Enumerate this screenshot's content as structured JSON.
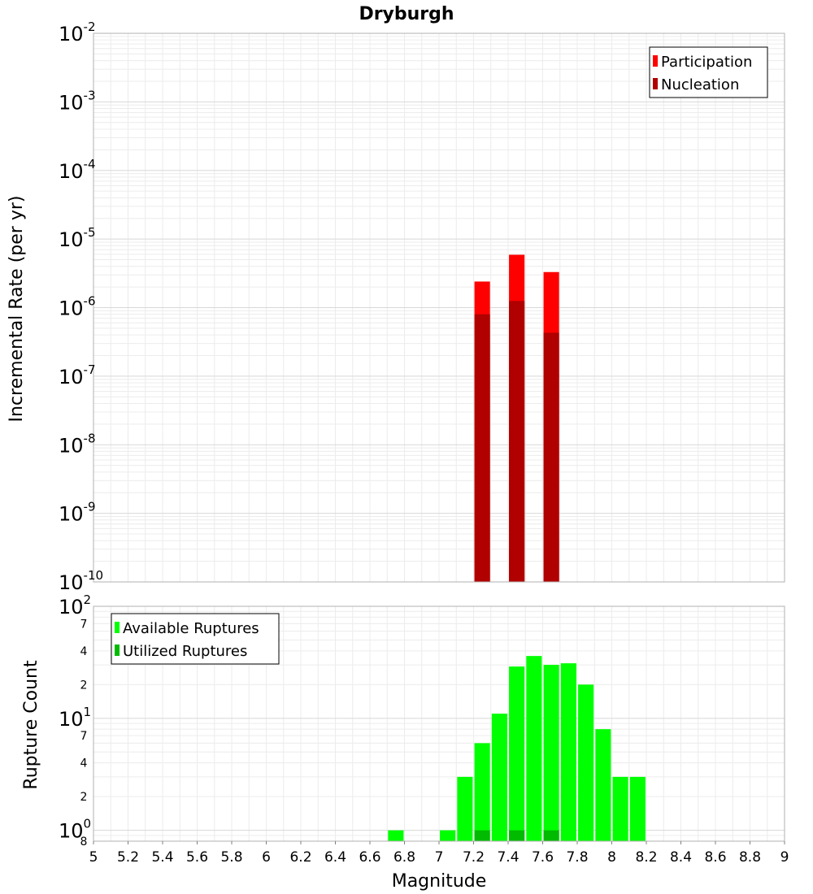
{
  "chart_data": [
    {
      "type": "bar",
      "title": "Dryburgh",
      "ylabel": "Incremental Rate (per yr)",
      "yscale": "log",
      "ylim": [
        1e-10,
        0.01
      ],
      "xlim": [
        5,
        9
      ],
      "grid": true,
      "legend_position": "top-right",
      "ytick_exponents": [
        "-10",
        "-9",
        "-8",
        "-7",
        "-6",
        "-5",
        "-4",
        "-3",
        "-2"
      ],
      "ytick_base": "10",
      "series": [
        {
          "name": "Participation",
          "color": "#ff0000",
          "x": [
            7.25,
            7.45,
            7.65
          ],
          "values": [
            2.4e-06,
            5.9e-06,
            3.3e-06
          ]
        },
        {
          "name": "Nucleation",
          "color": "#b00000",
          "x": [
            7.25,
            7.45,
            7.65
          ],
          "values": [
            8e-07,
            1.25e-06,
            4.3e-07
          ]
        }
      ]
    },
    {
      "type": "bar",
      "ylabel": "Rupture Count",
      "xlabel": "Magnitude",
      "yscale": "log",
      "ylim": [
        0.8,
        100
      ],
      "xlim": [
        5,
        9
      ],
      "grid": true,
      "legend_position": "top-left",
      "xticks": [
        "5",
        "5.2",
        "5.4",
        "5.6",
        "5.8",
        "6",
        "6.2",
        "6.4",
        "6.6",
        "6.8",
        "7",
        "7.2",
        "7.4",
        "7.6",
        "7.8",
        "8",
        "8.2",
        "8.4",
        "8.6",
        "8.8",
        "9"
      ],
      "ytick_base": "10",
      "ytick_exponents": [
        "0",
        "1",
        "2"
      ],
      "minor_ticks": [
        {
          "label": "8",
          "value": 0.8
        },
        {
          "label": "2",
          "value": 2
        },
        {
          "label": "4",
          "value": 4
        },
        {
          "label": "7",
          "value": 7
        },
        {
          "label": "2",
          "value": 20
        },
        {
          "label": "4",
          "value": 40
        },
        {
          "label": "7",
          "value": 70
        }
      ],
      "series": [
        {
          "name": "Available Ruptures",
          "color": "#00ff00",
          "x": [
            6.75,
            7.05,
            7.15,
            7.25,
            7.35,
            7.45,
            7.55,
            7.65,
            7.75,
            7.85,
            7.95,
            8.05,
            8.15
          ],
          "values": [
            1,
            1,
            3,
            6,
            11,
            29,
            36,
            30,
            31,
            20,
            8,
            3,
            3
          ]
        },
        {
          "name": "Utilized Ruptures",
          "color": "#00bb00",
          "x": [
            7.25,
            7.45,
            7.65
          ],
          "values": [
            1,
            1,
            1
          ]
        }
      ]
    }
  ]
}
